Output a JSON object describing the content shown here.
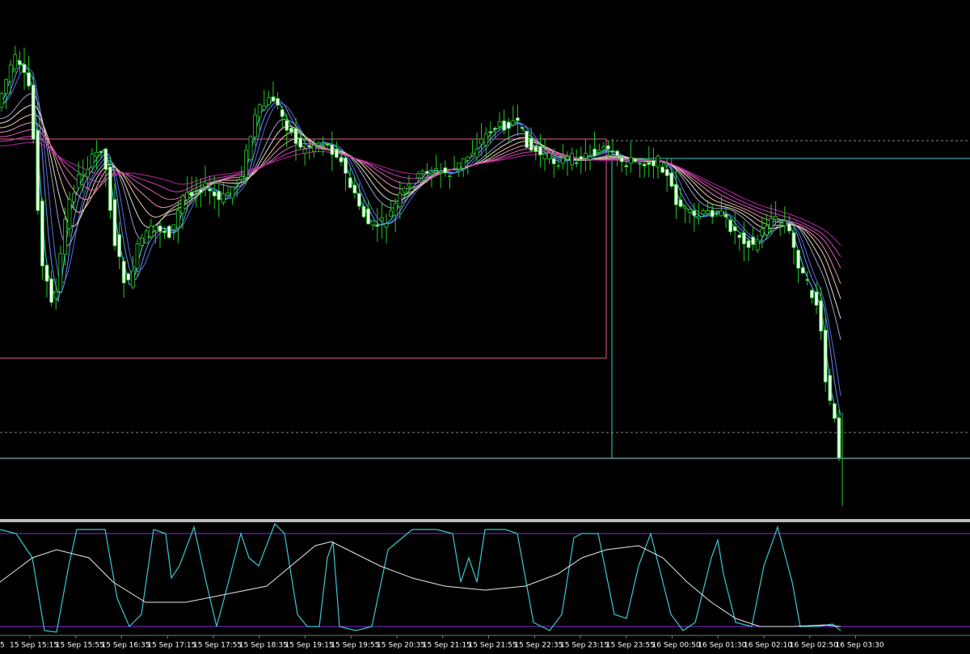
{
  "time_axis": {
    "labels": [
      "5",
      "15 Sep 15:15",
      "15 Sep 15:55",
      "15 Sep 16:35",
      "15 Sep 17:15",
      "15 Sep 17:55",
      "15 Sep 18:35",
      "15 Sep 19:15",
      "15 Sep 19:55",
      "15 Sep 20:35",
      "15 Sep 21:15",
      "15 Sep 21:55",
      "15 Sep 22:35",
      "15 Sep 23:15",
      "15 Sep 23:55",
      "16 Sep 00:50",
      "16 Sep 01:30",
      "16 Sep 02:10",
      "16 Sep 02:50",
      "16 Sep 03:30"
    ]
  }
}
